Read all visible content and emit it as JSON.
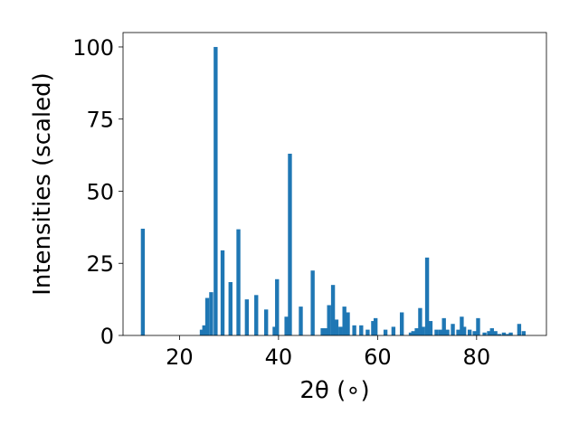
{
  "chart_data": {
    "type": "bar",
    "title": "",
    "xlabel": "2θ (∘)",
    "ylabel": "Intensities (scaled)",
    "xlim": [
      8.6,
      94.1
    ],
    "ylim": [
      0,
      105
    ],
    "xticks": [
      20,
      40,
      60,
      80
    ],
    "yticks": [
      0,
      25,
      50,
      75,
      100
    ],
    "grid": false,
    "bar_width": 0.8,
    "color": "#1f77b4",
    "x": [
      12.6,
      24.5,
      25.0,
      25.6,
      26.4,
      27.3,
      28.7,
      30.3,
      31.9,
      33.6,
      35.5,
      37.5,
      39.2,
      39.7,
      41.6,
      42.3,
      44.5,
      46.9,
      48.9,
      49.5,
      50.2,
      51.0,
      51.7,
      52.5,
      53.3,
      54.0,
      55.3,
      56.7,
      58.0,
      59.1,
      59.6,
      61.6,
      63.2,
      64.9,
      66.7,
      67.2,
      67.9,
      68.6,
      69.2,
      70.0,
      70.7,
      71.9,
      72.7,
      73.4,
      74.1,
      75.2,
      76.3,
      77.0,
      77.5,
      78.6,
      79.6,
      80.3,
      81.6,
      82.5,
      83.1,
      83.8,
      84.6,
      85.5,
      86.3,
      86.9,
      88.6,
      89.5
    ],
    "values": [
      37.0,
      2.0,
      3.5,
      13.0,
      15.0,
      100.0,
      29.5,
      18.5,
      36.8,
      12.5,
      14.0,
      9.0,
      3.0,
      19.5,
      6.5,
      63.0,
      10.0,
      22.5,
      2.5,
      2.5,
      10.5,
      17.5,
      5.5,
      3.0,
      10.0,
      8.0,
      3.5,
      3.5,
      2.0,
      5.0,
      6.0,
      2.0,
      3.0,
      8.0,
      1.0,
      1.5,
      2.5,
      9.5,
      3.0,
      27.0,
      5.0,
      2.0,
      2.0,
      6.0,
      2.0,
      4.0,
      2.0,
      6.5,
      3.0,
      2.0,
      1.5,
      6.0,
      1.0,
      1.5,
      2.5,
      1.5,
      0.5,
      1.0,
      0.5,
      1.0,
      4.0,
      1.5
    ]
  }
}
